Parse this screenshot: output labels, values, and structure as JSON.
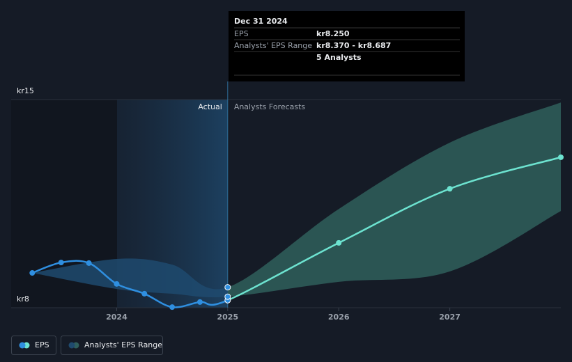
{
  "chart_data": {
    "type": "line",
    "xlim": [
      2023.05,
      2028.0
    ],
    "xticks": [
      2024,
      2025,
      2026,
      2027
    ],
    "ylim": [
      8,
      15
    ],
    "yticks": [
      {
        "value": 8,
        "label": "kr8"
      },
      {
        "value": 15,
        "label": "kr15"
      }
    ],
    "divider_x": 2025,
    "divider_labels": [
      "Actual",
      "Analysts Forecasts"
    ],
    "series": [
      {
        "name": "EPS",
        "color": "#2f8fe0",
        "forecast_color": "#6de3d0",
        "x": [
          2023.24,
          2023.5,
          2023.75,
          2024.0,
          2024.25,
          2024.5,
          2024.75,
          2025.0,
          2026.0,
          2027.0,
          2028.0
        ],
        "values": [
          9.17,
          9.52,
          9.5,
          8.8,
          8.47,
          8.02,
          8.19,
          8.25,
          10.18,
          12.0,
          13.06
        ]
      },
      {
        "name": "Analysts' EPS Range",
        "color": "#2f5f5c",
        "past_color": "#1f4a6e",
        "x": [
          2023.24,
          2024.0,
          2024.5,
          2025.0,
          2026.0,
          2027.0,
          2028.0
        ],
        "low": [
          9.17,
          8.63,
          8.47,
          8.37,
          8.87,
          9.22,
          11.25
        ],
        "high": [
          9.17,
          9.64,
          9.45,
          8.687,
          11.32,
          13.55,
          14.9
        ]
      }
    ],
    "tooltip": {
      "title": "Dec 31 2024",
      "rows": [
        [
          "EPS",
          "kr8.250"
        ],
        [
          "Analysts' EPS Range",
          "kr8.370 - kr8.687"
        ],
        [
          "",
          "5 Analysts"
        ]
      ]
    }
  }
}
